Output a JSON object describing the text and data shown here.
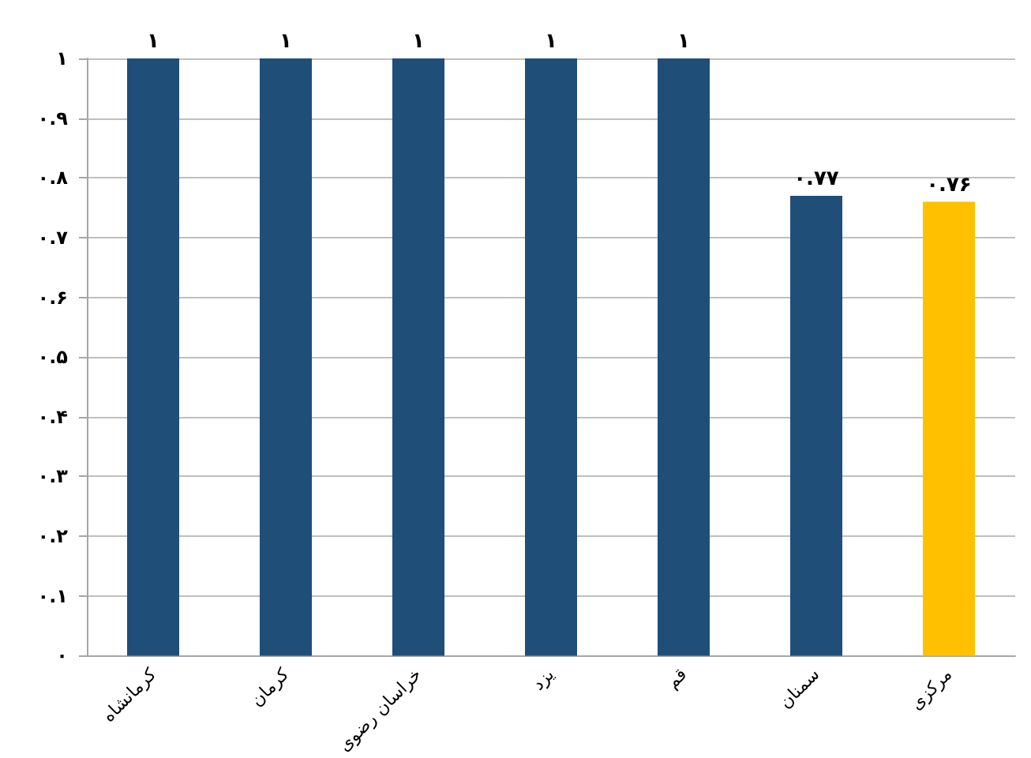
{
  "chart_data": {
    "type": "bar",
    "categories": [
      "کرمانشاه",
      "کرمان",
      "خراسان رضوی",
      "یزد",
      "قم",
      "سمنان",
      "مرکزی"
    ],
    "values": [
      1,
      1,
      1,
      1,
      1,
      0.77,
      0.76
    ],
    "colors": [
      "#1f4e79",
      "#1f4e79",
      "#1f4e79",
      "#1f4e79",
      "#1f4e79",
      "#1f4e79",
      "#ffc000"
    ],
    "value_labels": [
      "۱",
      "۱",
      "۱",
      "۱",
      "۱",
      "۰.۷۷",
      "۰.۷۶"
    ],
    "ylim": [
      0,
      1
    ],
    "yticks": [
      {
        "value": 0,
        "label": "۰"
      },
      {
        "value": 0.1,
        "label": "۰.۱"
      },
      {
        "value": 0.2,
        "label": "۰.۲"
      },
      {
        "value": 0.3,
        "label": "۰.۳"
      },
      {
        "value": 0.4,
        "label": "۰.۴"
      },
      {
        "value": 0.5,
        "label": "۰.۵"
      },
      {
        "value": 0.6,
        "label": "۰.۶"
      },
      {
        "value": 0.7,
        "label": "۰.۷"
      },
      {
        "value": 0.8,
        "label": "۰.۸"
      },
      {
        "value": 0.9,
        "label": "۰.۹"
      },
      {
        "value": 1,
        "label": "۱"
      }
    ],
    "grid": "y"
  }
}
